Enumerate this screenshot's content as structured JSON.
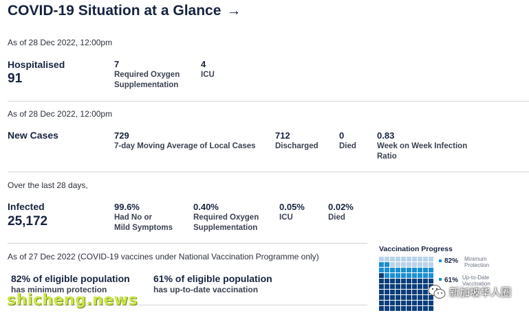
{
  "header": {
    "title": "COVID-19 Situation at a Glance",
    "arrow": "→"
  },
  "hospital": {
    "as_of": "As of 28 Dec 2022, 12:00pm",
    "label": "Hospitalised",
    "value": "91",
    "stats": [
      {
        "value": "7",
        "desc_line1": "Required Oxygen",
        "desc_line2": "Supplementation"
      },
      {
        "value": "4",
        "desc_line1": "ICU",
        "desc_line2": ""
      }
    ]
  },
  "cases": {
    "as_of": "As of 28 Dec 2022, 12:00pm",
    "label": "New Cases",
    "stats": [
      {
        "value": "729",
        "desc_line1": "7-day Moving Average of Local Cases",
        "desc_line2": ""
      },
      {
        "value": "712",
        "desc_line1": "Discharged",
        "desc_line2": ""
      },
      {
        "value": "0",
        "desc_line1": "Died",
        "desc_line2": ""
      },
      {
        "value": "0.83",
        "desc_line1": "Week on Week Infection",
        "desc_line2": "Ratio"
      }
    ]
  },
  "infected": {
    "as_of": "Over the last 28 days,",
    "label": "Infected",
    "value": "25,172",
    "stats": [
      {
        "value": "99.6%",
        "desc_line1": "Had No or",
        "desc_line2": "Mild Symptoms"
      },
      {
        "value": "0.40%",
        "desc_line1": "Required Oxygen",
        "desc_line2": "Supplementation"
      },
      {
        "value": "0.05%",
        "desc_line1": "ICU",
        "desc_line2": ""
      },
      {
        "value": "0.02%",
        "desc_line1": "Died",
        "desc_line2": ""
      }
    ]
  },
  "vaccination": {
    "as_of": "As of 27 Dec 2022 (COVID-19 vaccines under National Vaccination Programme only)",
    "blocks": [
      {
        "headline": "82% of eligible population",
        "desc": "has minimum protection"
      },
      {
        "headline": "61% of eligible population",
        "desc": "has up-to-date vaccination"
      }
    ],
    "progress": {
      "title": "Vaccination Progress",
      "legend": [
        {
          "pct": "82%",
          "line1": "Minimum",
          "line2": "Protection",
          "value": 0.82
        },
        {
          "pct": "61%",
          "line1": "Up-to-Date",
          "line2": "Vaccination",
          "value": 0.61
        }
      ],
      "colors": {
        "dark": "#0b3e7a",
        "mid": "#1a8fd1",
        "light": "#b9d3ea"
      }
    }
  },
  "watermarks": {
    "site": "shicheng.news",
    "wechat": "新加坡华人圈"
  }
}
